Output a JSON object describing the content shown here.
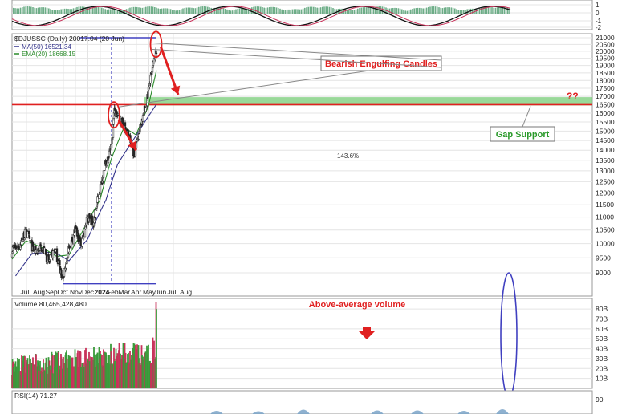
{
  "chart_data": [
    {
      "type": "candlestick",
      "panel": "price",
      "symbol_line": "$DJUSSC (Daily) 20017.04 (20 Jun)",
      "legend": [
        {
          "label": "MA(50) 16521.34",
          "color": "#33338a"
        },
        {
          "label": "EMA(20) 18668.15",
          "color": "#2a8a2a"
        }
      ],
      "x_tick_labels": [
        "Jul",
        "Aug",
        "Sep",
        "Oct",
        "Nov",
        "Dec",
        "2024",
        "Feb",
        "Mar",
        "Apr",
        "May",
        "Jun",
        "Jul",
        "Aug"
      ],
      "y_tick_labels": [
        "21000",
        "20500",
        "20000",
        "19500",
        "19000",
        "18500",
        "18000",
        "17500",
        "17000",
        "16500",
        "16000",
        "15500",
        "15000",
        "14500",
        "14000",
        "13500",
        "13000",
        "12500",
        "12000",
        "11500",
        "11000",
        "10500",
        "10000",
        "9500",
        "9000"
      ],
      "ylim": [
        8600,
        21300
      ],
      "y_scale": "log",
      "close_waypoints": [
        {
          "date": "2023-06-26",
          "close": 9800
        },
        {
          "date": "2023-07-15",
          "close": 9950
        },
        {
          "date": "2023-07-31",
          "close": 10450
        },
        {
          "date": "2023-08-20",
          "close": 9700
        },
        {
          "date": "2023-09-10",
          "close": 9900
        },
        {
          "date": "2023-09-25",
          "close": 9300
        },
        {
          "date": "2023-10-10",
          "close": 9800
        },
        {
          "date": "2023-10-31",
          "close": 8800
        },
        {
          "date": "2023-11-15",
          "close": 9800
        },
        {
          "date": "2023-11-30",
          "close": 10500
        },
        {
          "date": "2023-12-15",
          "close": 10000
        },
        {
          "date": "2023-12-31",
          "close": 11000
        },
        {
          "date": "2024-01-15",
          "close": 10800
        },
        {
          "date": "2024-01-31",
          "close": 12200
        },
        {
          "date": "2024-02-15",
          "close": 13400
        },
        {
          "date": "2024-02-29",
          "close": 14200
        },
        {
          "date": "2024-03-06",
          "close": 16100
        },
        {
          "date": "2024-03-20",
          "close": 15700
        },
        {
          "date": "2024-04-10",
          "close": 14900
        },
        {
          "date": "2024-04-25",
          "close": 13800
        },
        {
          "date": "2024-05-10",
          "close": 15200
        },
        {
          "date": "2024-05-25",
          "close": 16500
        },
        {
          "date": "2024-06-10",
          "close": 18800
        },
        {
          "date": "2024-06-20",
          "close": 20017
        }
      ],
      "ma50_waypoints": [
        {
          "date": "2023-07-05",
          "value": 8900
        },
        {
          "date": "2023-08-15",
          "value": 9650
        },
        {
          "date": "2023-10-10",
          "value": 9700
        },
        {
          "date": "2023-11-15",
          "value": 9400
        },
        {
          "date": "2023-12-31",
          "value": 10150
        },
        {
          "date": "2024-02-15",
          "value": 11700
        },
        {
          "date": "2024-03-15",
          "value": 13300
        },
        {
          "date": "2024-04-30",
          "value": 14750
        },
        {
          "date": "2024-06-20",
          "value": 16521
        }
      ],
      "ema20_waypoints": [
        {
          "date": "2023-06-26",
          "value": 9450
        },
        {
          "date": "2023-07-31",
          "value": 10100
        },
        {
          "date": "2023-09-10",
          "value": 9850
        },
        {
          "date": "2023-10-15",
          "value": 9550
        },
        {
          "date": "2023-11-15",
          "value": 9600
        },
        {
          "date": "2023-12-15",
          "value": 10350
        },
        {
          "date": "2024-01-31",
          "value": 11700
        },
        {
          "date": "2024-02-29",
          "value": 13600
        },
        {
          "date": "2024-03-31",
          "value": 15200
        },
        {
          "date": "2024-04-30",
          "value": 14800
        },
        {
          "date": "2024-05-31",
          "value": 16400
        },
        {
          "date": "2024-06-20",
          "value": 18668
        }
      ],
      "reference_lines": [
        {
          "kind": "horizontal",
          "value": 16500,
          "color": "#e02020"
        },
        {
          "kind": "horizontal",
          "value": 21000,
          "from": "2023-12-10",
          "to": "2024-06-20",
          "color": "#4040c0"
        },
        {
          "kind": "horizontal",
          "value": 8650,
          "from": "2023-10-31",
          "to": "2024-06-20",
          "color": "#4040c0"
        },
        {
          "kind": "vertical",
          "date": "2024-02-29",
          "color": "#4040c0"
        }
      ],
      "gap_zone": {
        "from": 16450,
        "to": 16950,
        "start": "2024-05-20",
        "end": "2024-08-31",
        "color": "#7fd07f"
      },
      "annotations": [
        {
          "text": "Bearish Engulfing Candles",
          "color": "#e02020",
          "position": "top-center"
        },
        {
          "text": "Gap Support",
          "color": "#2a9a2a",
          "position": "right"
        },
        {
          "text": "??",
          "color": "#e02020",
          "position": "right"
        },
        {
          "text": "143.6%",
          "color": "#333333",
          "position": "center"
        }
      ]
    },
    {
      "type": "bar",
      "panel": "volume",
      "label": "Volume 80,465,428,480",
      "y_tick_labels": [
        "80B",
        "70B",
        "60B",
        "50B",
        "40B",
        "30B",
        "20B",
        "10B"
      ],
      "ylim": [
        0,
        85
      ],
      "units": "B",
      "volume_waypoints": [
        {
          "date": "2023-06-26",
          "value": 22
        },
        {
          "date": "2023-09-15",
          "value": 24
        },
        {
          "date": "2023-12-15",
          "value": 27
        },
        {
          "date": "2024-03-20",
          "value": 32
        },
        {
          "date": "2024-05-31",
          "value": 30
        },
        {
          "date": "2024-06-13",
          "value": 38
        },
        {
          "date": "2024-06-18",
          "value": 45
        },
        {
          "date": "2024-06-20",
          "value": 80
        }
      ],
      "annotations": [
        {
          "text": "Above-average volume",
          "color": "#e02020",
          "position": "top-center"
        }
      ]
    },
    {
      "type": "area",
      "panel": "rsi",
      "label": "RSI(14) 71.27",
      "y_tick_labels": [
        "90"
      ],
      "ylim": [
        10,
        90
      ]
    }
  ],
  "top_panel": {
    "y_tick_labels": [
      "1",
      "0",
      "-1",
      "-2"
    ]
  }
}
